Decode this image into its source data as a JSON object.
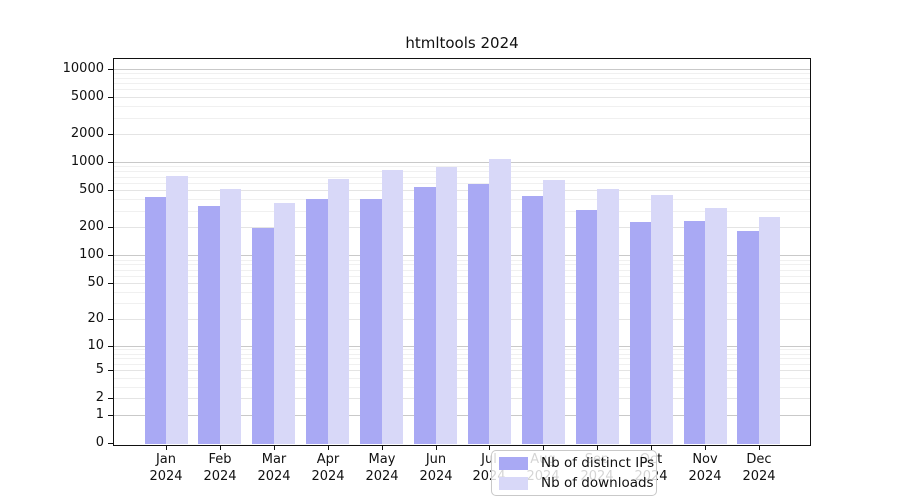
{
  "title": "htmltools 2024",
  "chart_data": {
    "type": "bar",
    "categories": [
      "Jan",
      "Feb",
      "Mar",
      "Apr",
      "May",
      "Jun",
      "Jul",
      "Aug",
      "Sep",
      "Oct",
      "Nov",
      "Dec"
    ],
    "year_label": "2024",
    "series": [
      {
        "name": "Nb of distinct IPs",
        "color": "#a9a9f4",
        "values": [
          420,
          338,
          197,
          400,
          402,
          540,
          580,
          432,
          306,
          228,
          236,
          183
        ]
      },
      {
        "name": "Nb of downloads",
        "color": "#d8d8f8",
        "values": [
          706,
          515,
          364,
          659,
          822,
          886,
          1072,
          643,
          515,
          444,
          322,
          260
        ]
      }
    ],
    "yscale": "log1p",
    "y_ticks": [
      0,
      1,
      2,
      5,
      10,
      20,
      50,
      100,
      200,
      500,
      1000,
      2000,
      5000,
      10000
    ],
    "ylim": [
      0,
      13000
    ],
    "xlabel": "",
    "ylabel": "",
    "grid": true,
    "legend_position": "inside-bottom-center",
    "colors": {
      "axis": "#111111",
      "grid_major": "#c9c9c9",
      "grid_minor": "#e4e4e4",
      "grid_faint": "#f0f0f0"
    }
  }
}
